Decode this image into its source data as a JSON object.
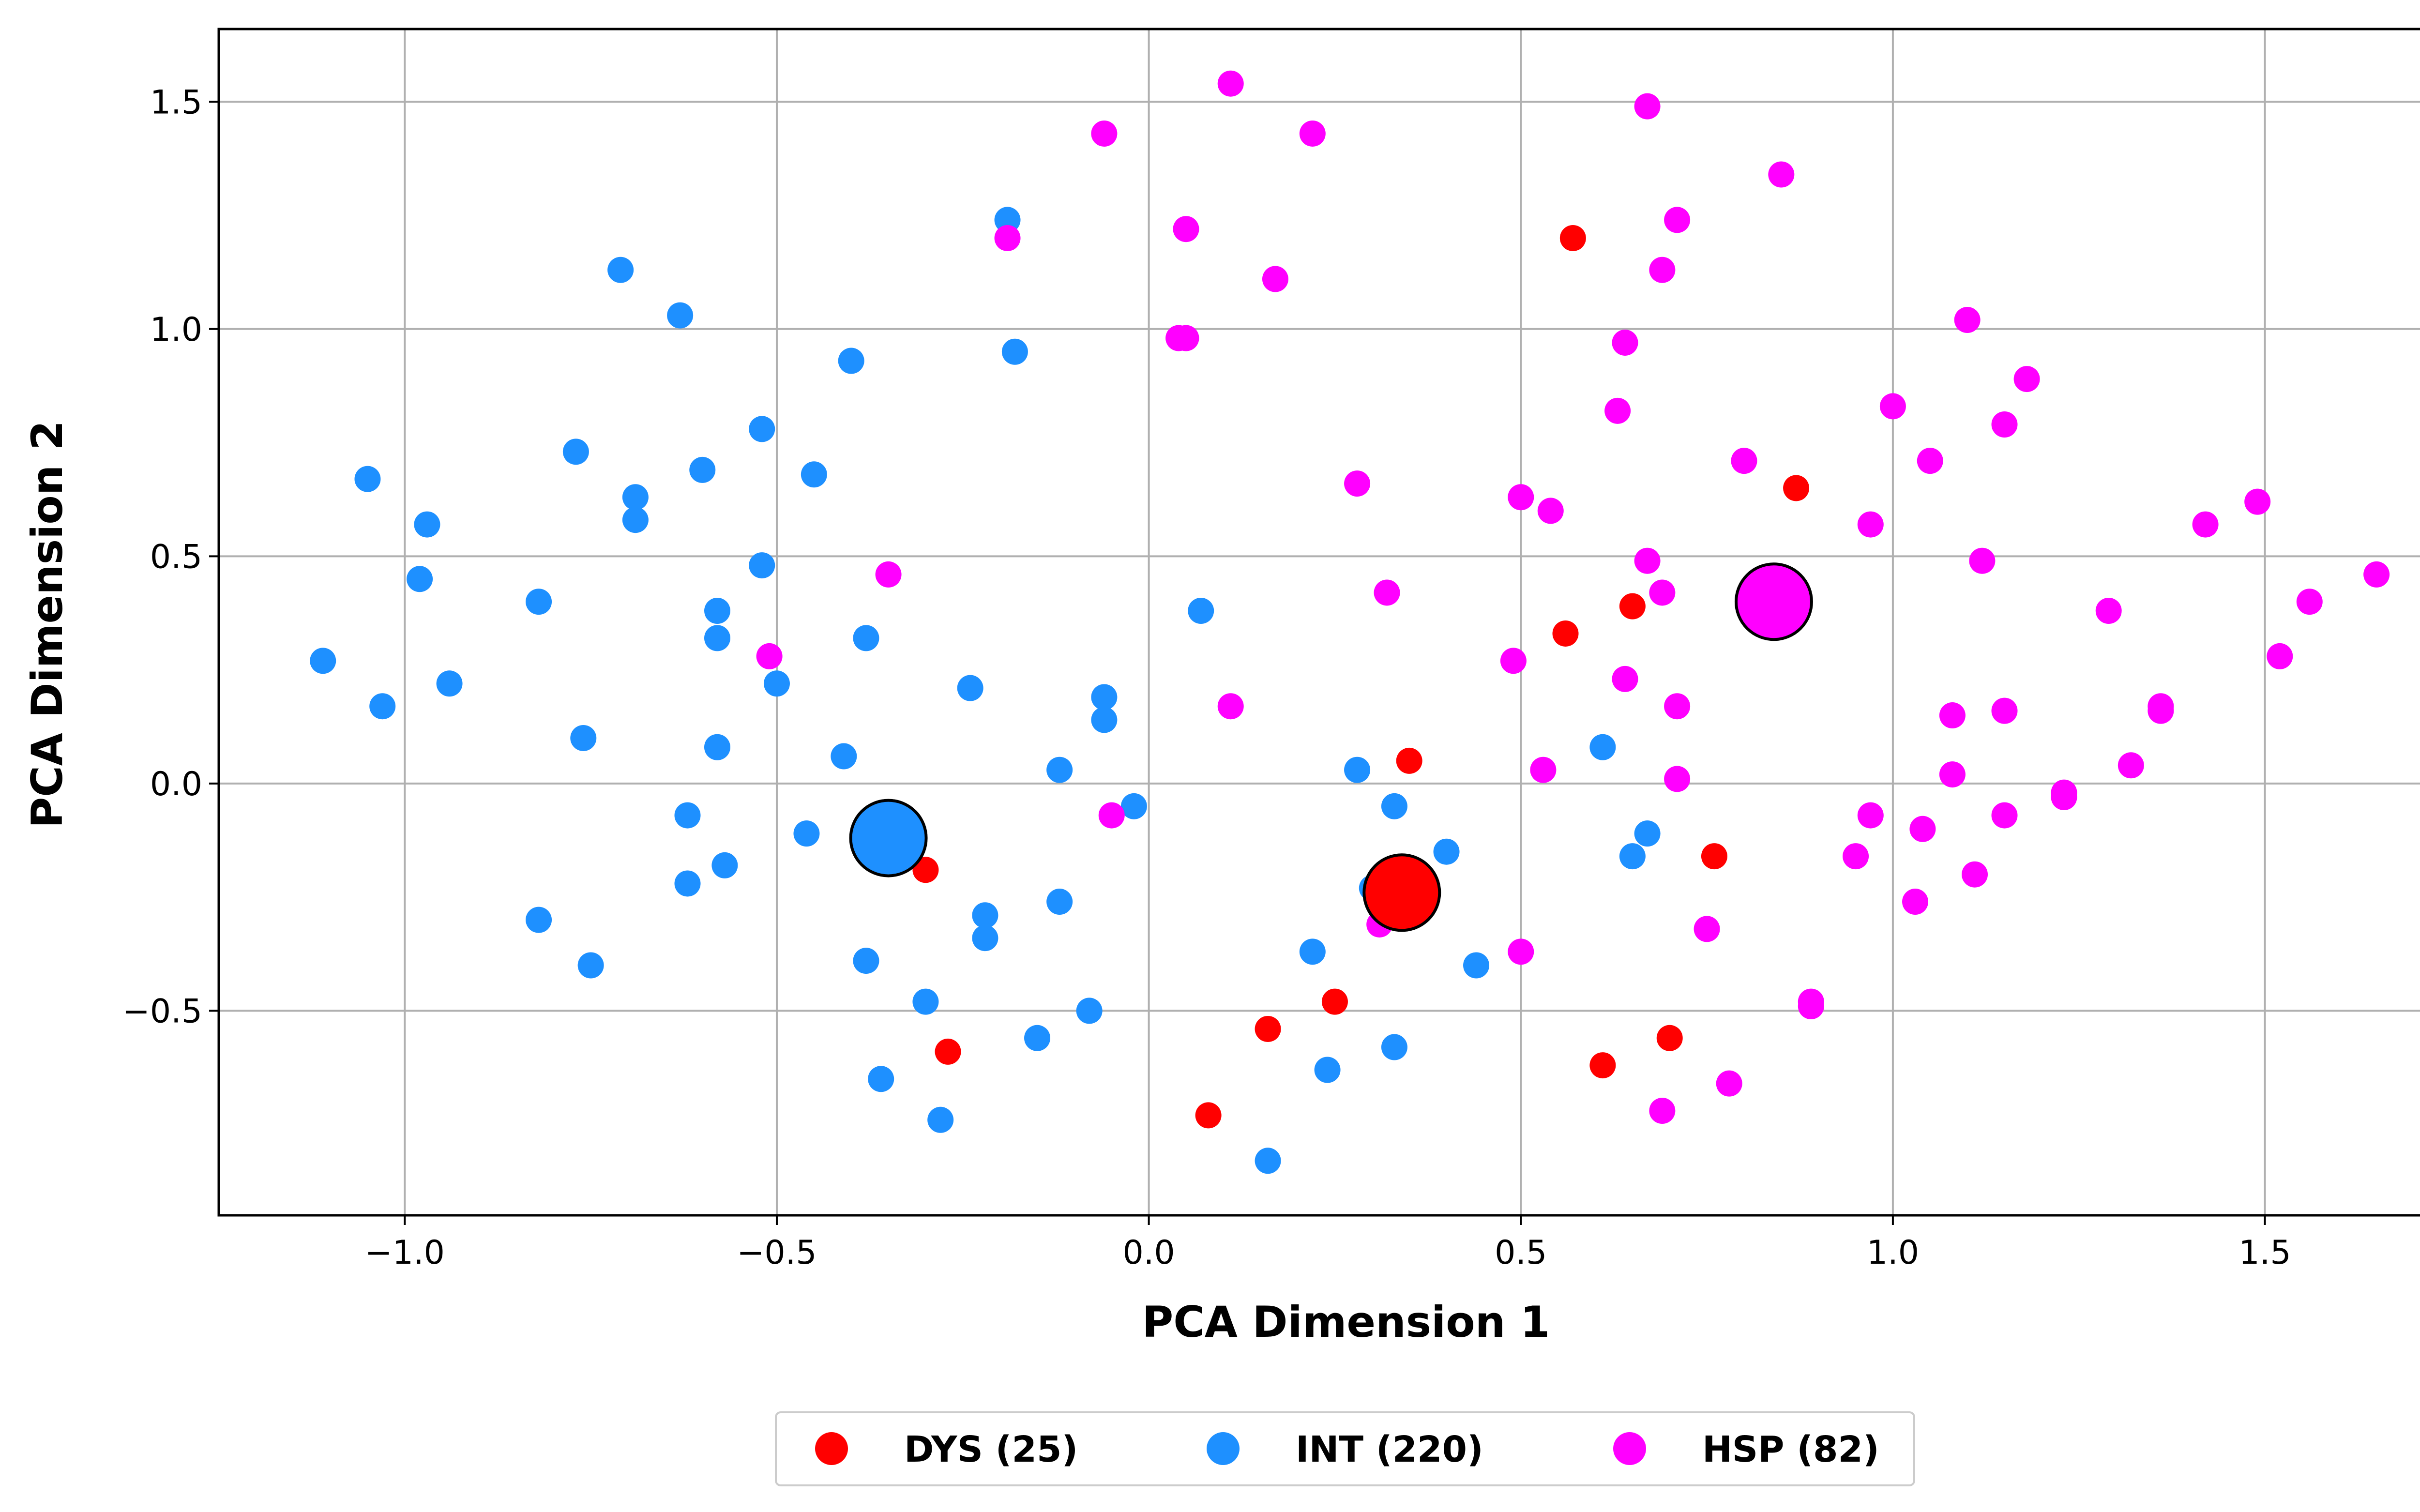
{
  "chart_data": {
    "type": "scatter",
    "xlabel": "PCA Dimension 1",
    "ylabel": "PCA Dimension 2",
    "xlim": [
      -1.25,
      1.78
    ],
    "ylim": [
      -0.95,
      1.66
    ],
    "x_ticks": [
      -1.0,
      -0.5,
      0.0,
      0.5,
      1.0,
      1.5
    ],
    "x_tick_labels": [
      "−1.0",
      "−0.5",
      "0.0",
      "0.5",
      "1.0",
      "1.5"
    ],
    "y_ticks": [
      -0.5,
      0.0,
      0.5,
      1.0,
      1.5
    ],
    "y_tick_labels": [
      "−0.5",
      "0.0",
      "0.5",
      "1.0",
      "1.5"
    ],
    "grid": true,
    "legend_position": "bottom-center, outside plot",
    "series": [
      {
        "name": "DYS (25)",
        "color": "#ff0000",
        "points": [
          [
            0.57,
            1.2
          ],
          [
            0.65,
            0.39
          ],
          [
            0.87,
            0.65
          ],
          [
            0.56,
            0.33
          ],
          [
            0.35,
            0.05
          ],
          [
            -0.3,
            -0.19
          ],
          [
            0.76,
            -0.16
          ],
          [
            0.25,
            -0.48
          ],
          [
            0.16,
            -0.54
          ],
          [
            -0.27,
            -0.59
          ],
          [
            0.61,
            -0.62
          ],
          [
            0.7,
            -0.56
          ],
          [
            0.08,
            -0.73
          ]
        ],
        "centroid": [
          0.34,
          -0.24
        ]
      },
      {
        "name": "INT (220)",
        "color": "#1e90ff",
        "points": [
          [
            -0.71,
            1.13
          ],
          [
            -0.63,
            1.03
          ],
          [
            -0.19,
            1.24
          ],
          [
            -0.18,
            0.95
          ],
          [
            -0.4,
            0.93
          ],
          [
            -1.05,
            0.67
          ],
          [
            -0.97,
            0.57
          ],
          [
            -0.98,
            0.45
          ],
          [
            -0.77,
            0.73
          ],
          [
            -0.69,
            0.63
          ],
          [
            -0.69,
            0.58
          ],
          [
            -0.6,
            0.69
          ],
          [
            -0.52,
            0.78
          ],
          [
            -0.45,
            0.68
          ],
          [
            -0.52,
            0.48
          ],
          [
            -0.82,
            0.4
          ],
          [
            -1.11,
            0.27
          ],
          [
            -1.03,
            0.17
          ],
          [
            -0.94,
            0.22
          ],
          [
            -0.76,
            0.1
          ],
          [
            -0.58,
            0.38
          ],
          [
            -0.58,
            0.32
          ],
          [
            -0.58,
            0.08
          ],
          [
            -0.38,
            0.32
          ],
          [
            -0.5,
            0.22
          ],
          [
            -0.41,
            0.06
          ],
          [
            -0.24,
            0.21
          ],
          [
            0.07,
            0.38
          ],
          [
            -0.06,
            0.19
          ],
          [
            -0.06,
            0.14
          ],
          [
            -0.12,
            0.03
          ],
          [
            -0.02,
            -0.05
          ],
          [
            -0.62,
            -0.07
          ],
          [
            -0.46,
            -0.11
          ],
          [
            -0.57,
            -0.18
          ],
          [
            -0.62,
            -0.22
          ],
          [
            -0.82,
            -0.3
          ],
          [
            -0.75,
            -0.4
          ],
          [
            -0.38,
            -0.39
          ],
          [
            -0.22,
            -0.29
          ],
          [
            -0.22,
            -0.34
          ],
          [
            -0.12,
            -0.26
          ],
          [
            -0.3,
            -0.48
          ],
          [
            -0.08,
            -0.5
          ],
          [
            -0.15,
            -0.56
          ],
          [
            -0.36,
            -0.65
          ],
          [
            -0.28,
            -0.74
          ],
          [
            0.28,
            0.03
          ],
          [
            0.33,
            -0.05
          ],
          [
            0.4,
            -0.15
          ],
          [
            0.3,
            -0.23
          ],
          [
            0.22,
            -0.37
          ],
          [
            0.44,
            -0.4
          ],
          [
            0.33,
            -0.58
          ],
          [
            0.24,
            -0.63
          ],
          [
            0.16,
            -0.83
          ],
          [
            0.61,
            0.08
          ],
          [
            0.67,
            -0.11
          ],
          [
            0.65,
            -0.16
          ]
        ],
        "centroid": [
          -0.35,
          -0.12
        ]
      },
      {
        "name": "HSP (82)",
        "color": "#ff00ff",
        "points": [
          [
            0.11,
            1.54
          ],
          [
            -0.06,
            1.43
          ],
          [
            0.22,
            1.43
          ],
          [
            0.67,
            1.49
          ],
          [
            0.85,
            1.34
          ],
          [
            -0.19,
            1.2
          ],
          [
            0.05,
            1.22
          ],
          [
            0.17,
            1.11
          ],
          [
            0.71,
            1.24
          ],
          [
            0.69,
            1.13
          ],
          [
            0.04,
            0.98
          ],
          [
            0.05,
            0.98
          ],
          [
            0.64,
            0.97
          ],
          [
            1.1,
            1.02
          ],
          [
            0.63,
            0.82
          ],
          [
            1.0,
            0.83
          ],
          [
            1.18,
            0.89
          ],
          [
            1.15,
            0.79
          ],
          [
            0.8,
            0.71
          ],
          [
            1.05,
            0.71
          ],
          [
            0.28,
            0.66
          ],
          [
            0.5,
            0.63
          ],
          [
            0.54,
            0.6
          ],
          [
            0.97,
            0.57
          ],
          [
            1.12,
            0.49
          ],
          [
            1.42,
            0.57
          ],
          [
            1.49,
            0.62
          ],
          [
            1.65,
            0.46
          ],
          [
            -0.35,
            0.46
          ],
          [
            0.32,
            0.42
          ],
          [
            0.67,
            0.49
          ],
          [
            0.69,
            0.42
          ],
          [
            1.29,
            0.38
          ],
          [
            1.56,
            0.4
          ],
          [
            1.52,
            0.28
          ],
          [
            -0.51,
            0.28
          ],
          [
            0.49,
            0.27
          ],
          [
            0.64,
            0.23
          ],
          [
            0.11,
            0.17
          ],
          [
            0.71,
            0.17
          ],
          [
            1.08,
            0.15
          ],
          [
            1.15,
            0.16
          ],
          [
            1.36,
            0.17
          ],
          [
            1.36,
            0.16
          ],
          [
            0.53,
            0.03
          ],
          [
            0.71,
            0.01
          ],
          [
            1.08,
            0.02
          ],
          [
            1.23,
            -0.02
          ],
          [
            1.23,
            -0.03
          ],
          [
            1.32,
            0.04
          ],
          [
            -0.05,
            -0.07
          ],
          [
            0.97,
            -0.07
          ],
          [
            1.04,
            -0.1
          ],
          [
            1.15,
            -0.07
          ],
          [
            0.95,
            -0.16
          ],
          [
            1.11,
            -0.2
          ],
          [
            1.03,
            -0.26
          ],
          [
            0.31,
            -0.31
          ],
          [
            0.75,
            -0.32
          ],
          [
            0.5,
            -0.37
          ],
          [
            0.89,
            -0.48
          ],
          [
            0.89,
            -0.49
          ],
          [
            0.78,
            -0.66
          ],
          [
            0.69,
            -0.72
          ]
        ],
        "centroid": [
          0.84,
          0.4
        ]
      }
    ]
  }
}
